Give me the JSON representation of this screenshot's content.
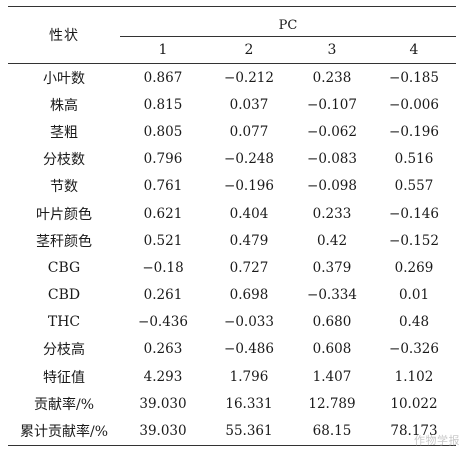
{
  "table": {
    "trait_header": "性状",
    "pc_header": "PC",
    "pc_columns": [
      "1",
      "2",
      "3",
      "4"
    ],
    "rows": [
      {
        "label": "小叶数",
        "values": [
          "0.867",
          "−0.212",
          "0.238",
          "−0.185"
        ]
      },
      {
        "label": "株高",
        "values": [
          "0.815",
          "0.037",
          "−0.107",
          "−0.006"
        ]
      },
      {
        "label": "茎粗",
        "values": [
          "0.805",
          "0.077",
          "−0.062",
          "−0.196"
        ]
      },
      {
        "label": "分枝数",
        "values": [
          "0.796",
          "−0.248",
          "−0.083",
          "0.516"
        ]
      },
      {
        "label": "节数",
        "values": [
          "0.761",
          "−0.196",
          "−0.098",
          "0.557"
        ]
      },
      {
        "label": "叶片颜色",
        "values": [
          "0.621",
          "0.404",
          "0.233",
          "−0.146"
        ]
      },
      {
        "label": "茎秆颜色",
        "values": [
          "0.521",
          "0.479",
          "0.42",
          "−0.152"
        ]
      },
      {
        "label": "CBG",
        "values": [
          "−0.18",
          "0.727",
          "0.379",
          "0.269"
        ]
      },
      {
        "label": "CBD",
        "values": [
          "0.261",
          "0.698",
          "−0.334",
          "0.01"
        ]
      },
      {
        "label": "THC",
        "values": [
          "−0.436",
          "−0.033",
          "0.680",
          "0.48"
        ]
      },
      {
        "label": "分枝高",
        "values": [
          "0.263",
          "−0.486",
          "0.608",
          "−0.326"
        ]
      },
      {
        "label": "特征值",
        "values": [
          "4.293",
          "1.796",
          "1.407",
          "1.102"
        ]
      },
      {
        "label": "贡献率/%",
        "values": [
          "39.030",
          "16.331",
          "12.789",
          "10.022"
        ]
      },
      {
        "label": "累计贡献率/%",
        "values": [
          "39.030",
          "55.361",
          "68.15",
          "78.173"
        ]
      }
    ]
  },
  "watermark": "作物学报"
}
